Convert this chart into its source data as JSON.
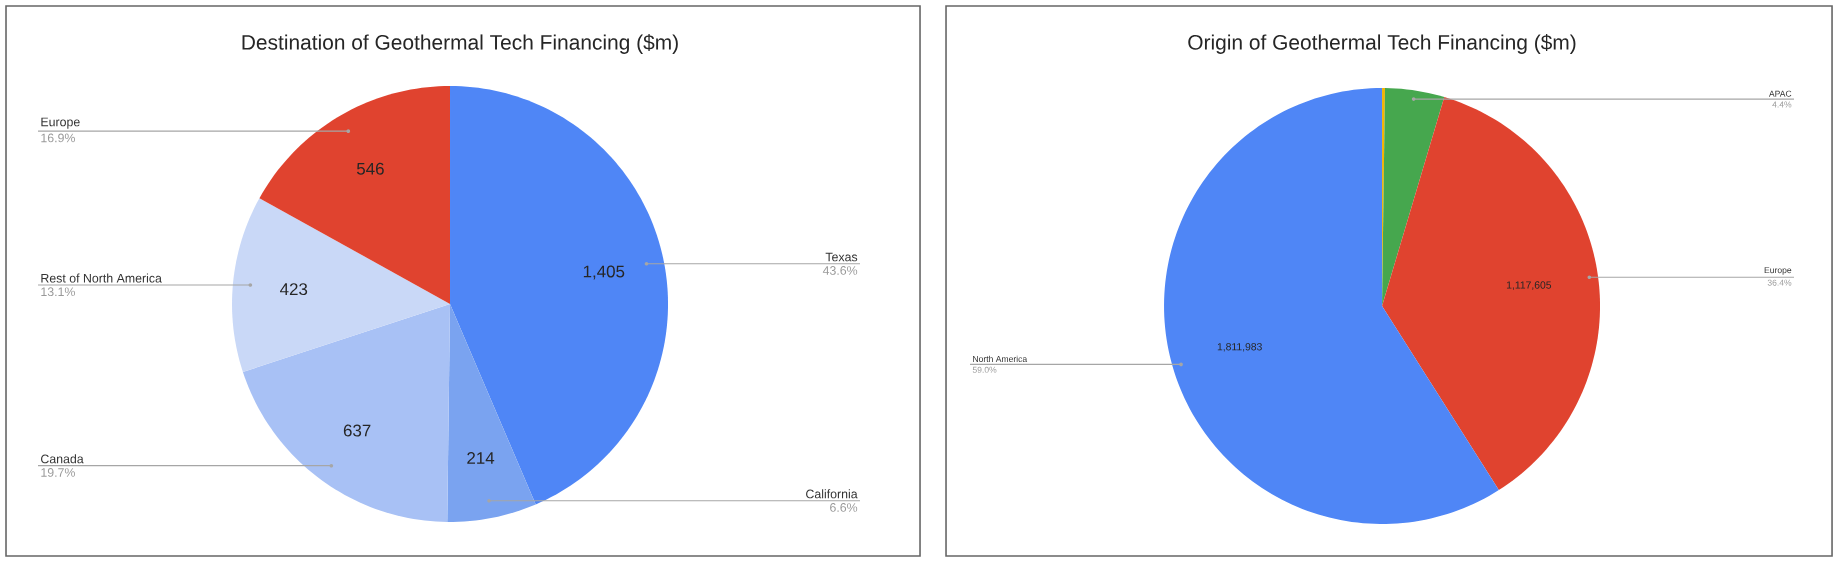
{
  "chart_data": [
    {
      "type": "pie",
      "title": "Destination of Geothermal Tech Financing ($m)",
      "categories": [
        "Texas",
        "California",
        "Canada",
        "Rest of North America",
        "Europe"
      ],
      "values": [
        1405,
        214,
        637,
        423,
        546
      ],
      "colors": [
        "#4f86f6",
        "#7aa3f0",
        "#a8c1f5",
        "#c9d8f7",
        "#e0432f"
      ],
      "value_labels": [
        "1,405",
        "214",
        "637",
        "423",
        "546"
      ],
      "annotations": [
        "43.6%",
        "6.6%",
        "19.7%",
        "13.1%",
        "16.9%"
      ]
    },
    {
      "type": "pie",
      "title": "Origin of Geothermal Tech Financing ($m)",
      "categories": [
        null,
        "APAC",
        "Europe",
        "North America"
      ],
      "values": [
        6600,
        135000,
        1117605,
        1811983
      ],
      "colors": [
        "#f4b400",
        "#46a74e",
        "#e0432f",
        "#4f86f6"
      ],
      "value_labels": [
        null,
        null,
        "1,117,605",
        "1,811,983"
      ],
      "annotations": [
        "4.4%",
        "36.4%",
        "59.0%"
      ]
    }
  ]
}
